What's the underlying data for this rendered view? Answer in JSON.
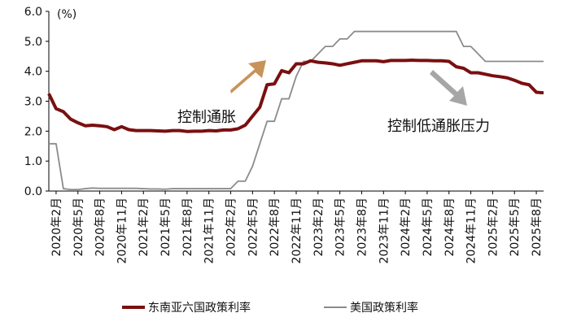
{
  "chart_data": {
    "type": "line",
    "unit_label": "(%)",
    "ylim": [
      0,
      6
    ],
    "yticks": [
      "0.0",
      "1.0",
      "2.0",
      "3.0",
      "4.0",
      "5.0",
      "6.0"
    ],
    "x_tick_labels": [
      "2020年2月",
      "2020年5月",
      "2020年8月",
      "2020年11月",
      "2021年2月",
      "2021年5月",
      "2021年8月",
      "2021年11月",
      "2022年2月",
      "2022年5月",
      "2022年8月",
      "2022年11月",
      "2023年2月",
      "2023年5月",
      "2023年8月",
      "2023年11月",
      "2024年2月",
      "2024年5月",
      "2024年8月",
      "2024年11月",
      "2025年2月",
      "2025年5月",
      "2025年8月"
    ],
    "x": [
      "2020-01",
      "2020-02",
      "2020-03",
      "2020-04",
      "2020-05",
      "2020-06",
      "2020-07",
      "2020-08",
      "2020-09",
      "2020-10",
      "2020-11",
      "2020-12",
      "2021-01",
      "2021-02",
      "2021-03",
      "2021-04",
      "2021-05",
      "2021-06",
      "2021-07",
      "2021-08",
      "2021-09",
      "2021-10",
      "2021-11",
      "2021-12",
      "2022-01",
      "2022-02",
      "2022-03",
      "2022-04",
      "2022-05",
      "2022-06",
      "2022-07",
      "2022-08",
      "2022-09",
      "2022-10",
      "2022-11",
      "2022-12",
      "2023-01",
      "2023-02",
      "2023-03",
      "2023-04",
      "2023-05",
      "2023-06",
      "2023-07",
      "2023-08",
      "2023-09",
      "2023-10",
      "2023-11",
      "2023-12",
      "2024-01",
      "2024-02",
      "2024-03",
      "2024-04",
      "2024-05",
      "2024-06",
      "2024-07",
      "2024-08",
      "2024-09",
      "2024-10",
      "2024-11",
      "2024-12",
      "2025-01",
      "2025-02",
      "2025-03",
      "2025-04",
      "2025-05",
      "2025-06",
      "2025-07",
      "2025-08",
      "2025-09"
    ],
    "series": [
      {
        "name": "东南亚六国政策利率",
        "color": "#7a0f10",
        "values": [
          3.25,
          2.75,
          2.65,
          2.4,
          2.28,
          2.18,
          2.2,
          2.18,
          2.15,
          2.05,
          2.15,
          2.05,
          2.02,
          2.02,
          2.02,
          2.01,
          2.0,
          2.02,
          2.02,
          1.99,
          2.0,
          2.0,
          2.02,
          2.01,
          2.04,
          2.04,
          2.08,
          2.2,
          2.5,
          2.8,
          3.55,
          3.58,
          4.02,
          3.95,
          4.25,
          4.25,
          4.35,
          4.3,
          4.28,
          4.25,
          4.2,
          4.25,
          4.3,
          4.35,
          4.35,
          4.35,
          4.32,
          4.36,
          4.36,
          4.36,
          4.37,
          4.36,
          4.36,
          4.35,
          4.35,
          4.33,
          4.15,
          4.1,
          3.95,
          3.95,
          3.9,
          3.85,
          3.82,
          3.78,
          3.7,
          3.6,
          3.55,
          3.3,
          3.28
        ]
      },
      {
        "name": "美国政策利率",
        "color": "#8c8c8c",
        "values": [
          1.58,
          1.58,
          0.08,
          0.05,
          0.05,
          0.08,
          0.1,
          0.09,
          0.09,
          0.09,
          0.09,
          0.09,
          0.09,
          0.08,
          0.07,
          0.07,
          0.06,
          0.08,
          0.08,
          0.08,
          0.08,
          0.08,
          0.08,
          0.08,
          0.08,
          0.08,
          0.33,
          0.33,
          0.83,
          1.58,
          2.33,
          2.33,
          3.08,
          3.08,
          3.83,
          4.33,
          4.33,
          4.58,
          4.83,
          4.83,
          5.08,
          5.08,
          5.33,
          5.33,
          5.33,
          5.33,
          5.33,
          5.33,
          5.33,
          5.33,
          5.33,
          5.33,
          5.33,
          5.33,
          5.33,
          5.33,
          5.33,
          4.83,
          4.83,
          4.58,
          4.33,
          4.33,
          4.33,
          4.33,
          4.33,
          4.33,
          4.33,
          4.33,
          4.33
        ]
      }
    ],
    "annotations": {
      "up_label": "控制通胀",
      "up_arrow_color": "#c8935a",
      "down_label": "控制低通胀压力",
      "down_arrow_color": "#a6a6a6"
    },
    "legend": {
      "position": "bottom",
      "items": [
        "东南亚六国政策利率",
        "美国政策利率"
      ]
    },
    "grid": false
  }
}
